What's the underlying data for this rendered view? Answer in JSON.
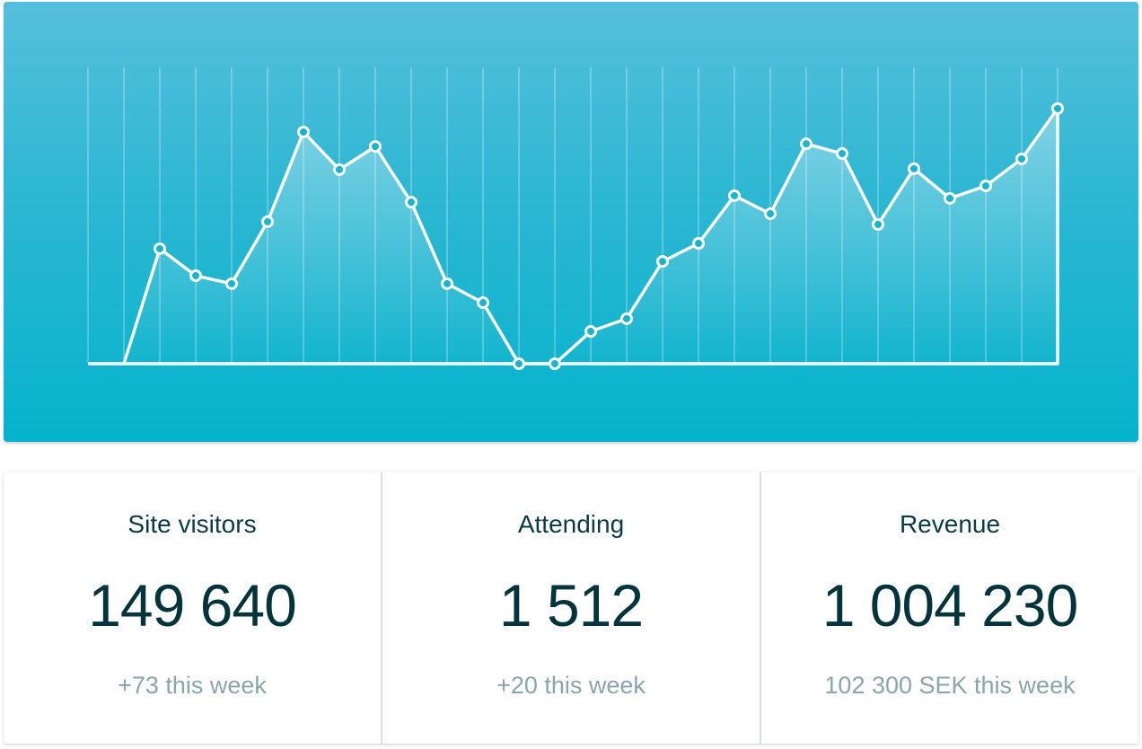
{
  "chart_data": {
    "type": "area",
    "title": "",
    "xlabel": "",
    "ylabel": "",
    "grid": "vertical",
    "legend": "none",
    "x": [
      1,
      2,
      3,
      4,
      5,
      6,
      7,
      8,
      9,
      10,
      11,
      12,
      13,
      14,
      15,
      16,
      17,
      18,
      19,
      20,
      21,
      22,
      23,
      24,
      25,
      26,
      27
    ],
    "values": [
      0,
      38.8,
      29.7,
      27,
      47.9,
      78.2,
      65.5,
      73.3,
      54.5,
      27,
      20.6,
      0,
      0,
      10.9,
      15.2,
      34.5,
      40.6,
      56.7,
      50.6,
      74.2,
      70.9,
      47,
      65.8,
      55.8,
      60,
      69.1,
      86.1
    ],
    "colors": {
      "line": "#ffffff",
      "marker_fill": "#1ab4cf",
      "background_top": "#55bfdc",
      "background_bottom": "#05b3cc"
    }
  },
  "stats": [
    {
      "label": "Site visitors",
      "value": "149 640",
      "sub": "+73 this week"
    },
    {
      "label": "Attending",
      "value": "1 512",
      "sub": "+20 this week"
    },
    {
      "label": "Revenue",
      "value": "1 004 230",
      "sub": "102 300 SEK this week"
    }
  ]
}
